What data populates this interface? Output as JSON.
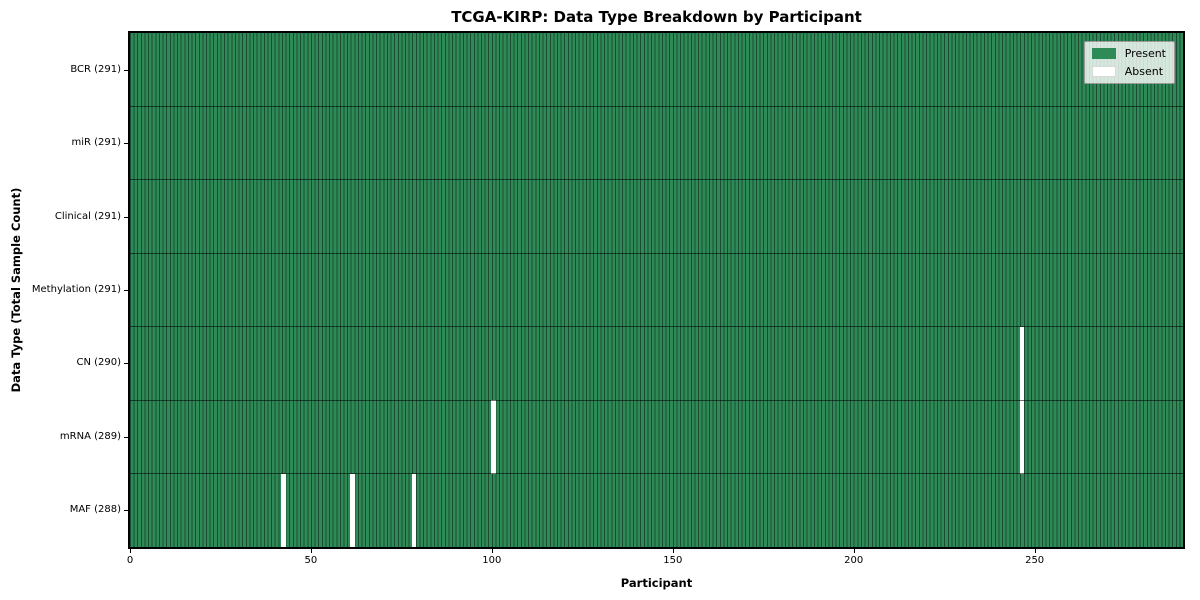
{
  "chart_data": {
    "type": "heatmap",
    "title": "TCGA-KIRP: Data Type Breakdown by Participant",
    "xlabel": "Participant",
    "ylabel": "Data Type (Total Sample Count)",
    "x_ticks": [
      0,
      50,
      100,
      150,
      200,
      250
    ],
    "xlim": [
      0,
      291
    ],
    "n_participants": 291,
    "grid": "cell-edges",
    "rows": [
      {
        "label": "BCR (291)",
        "data_type": "BCR",
        "total_samples": 291,
        "absent_participants": []
      },
      {
        "label": "miR (291)",
        "data_type": "miR",
        "total_samples": 291,
        "absent_participants": []
      },
      {
        "label": "Clinical (291)",
        "data_type": "Clinical",
        "total_samples": 291,
        "absent_participants": []
      },
      {
        "label": "Methylation (291)",
        "data_type": "Methylation",
        "total_samples": 291,
        "absent_participants": []
      },
      {
        "label": "CN (290)",
        "data_type": "CN",
        "total_samples": 290,
        "absent_participants": [
          246
        ]
      },
      {
        "label": "mRNA (289)",
        "data_type": "mRNA",
        "total_samples": 289,
        "absent_participants": [
          100,
          246
        ]
      },
      {
        "label": "MAF (288)",
        "data_type": "MAF",
        "total_samples": 288,
        "absent_participants": [
          42,
          61,
          78
        ]
      }
    ],
    "legend": {
      "position": "upper right",
      "entries": [
        {
          "label": "Present",
          "color": "#2e8b57"
        },
        {
          "label": "Absent",
          "color": "#ffffff"
        }
      ]
    },
    "colors": {
      "present": "#2e8b57",
      "absent": "#ffffff",
      "cell_edge": "rgba(0,0,0,0.45)",
      "row_separator": "rgba(0,0,0,0.55)",
      "plot_border": "#000000",
      "background": "#ffffff"
    }
  }
}
